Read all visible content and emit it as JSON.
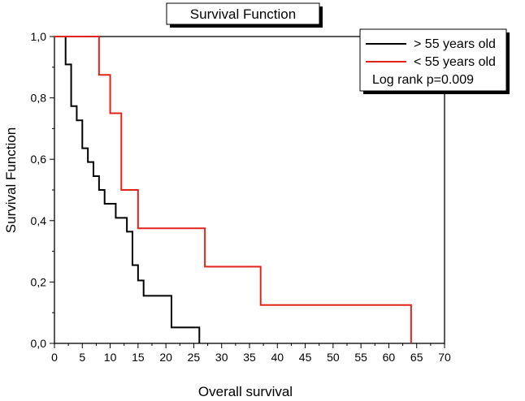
{
  "chart_data": {
    "type": "line",
    "subtype": "kaplan-meier step",
    "title": "Survival Function",
    "xlabel": "Overall survival",
    "ylabel": "Survival Function",
    "xlim": [
      0,
      70
    ],
    "ylim": [
      0,
      1
    ],
    "x_ticks": [
      0,
      5,
      10,
      15,
      20,
      25,
      30,
      35,
      40,
      45,
      50,
      55,
      60,
      65,
      70
    ],
    "x_tick_labels": [
      "0",
      "5",
      "10",
      "15",
      "20",
      "25",
      "30",
      "35",
      "40",
      "45",
      "50",
      "55",
      "60",
      "65",
      "70"
    ],
    "y_ticks": [
      0,
      0.2,
      0.4,
      0.6,
      0.8,
      1.0
    ],
    "y_tick_labels": [
      "0,0",
      "0,2",
      "0,4",
      "0,6",
      "0,8",
      "1,0"
    ],
    "grid": false,
    "legend_position": "top-right",
    "series": [
      {
        "name": "> 55 years old",
        "color": "#000000",
        "x": [
          0,
          2,
          3,
          4,
          5,
          6,
          7,
          8,
          9,
          11,
          13,
          14,
          15,
          16,
          21,
          26
        ],
        "y": [
          1.0,
          0.909,
          0.773,
          0.727,
          0.636,
          0.591,
          0.545,
          0.5,
          0.455,
          0.409,
          0.364,
          0.255,
          0.205,
          0.155,
          0.052,
          0.0
        ]
      },
      {
        "name": "< 55 years old",
        "color": "#e0241b",
        "x": [
          0,
          8,
          10,
          12,
          15,
          27,
          37,
          64
        ],
        "y": [
          1.0,
          0.875,
          0.75,
          0.5,
          0.375,
          0.25,
          0.125,
          0.0
        ]
      }
    ],
    "annotation": "Log rank p=0.009"
  }
}
